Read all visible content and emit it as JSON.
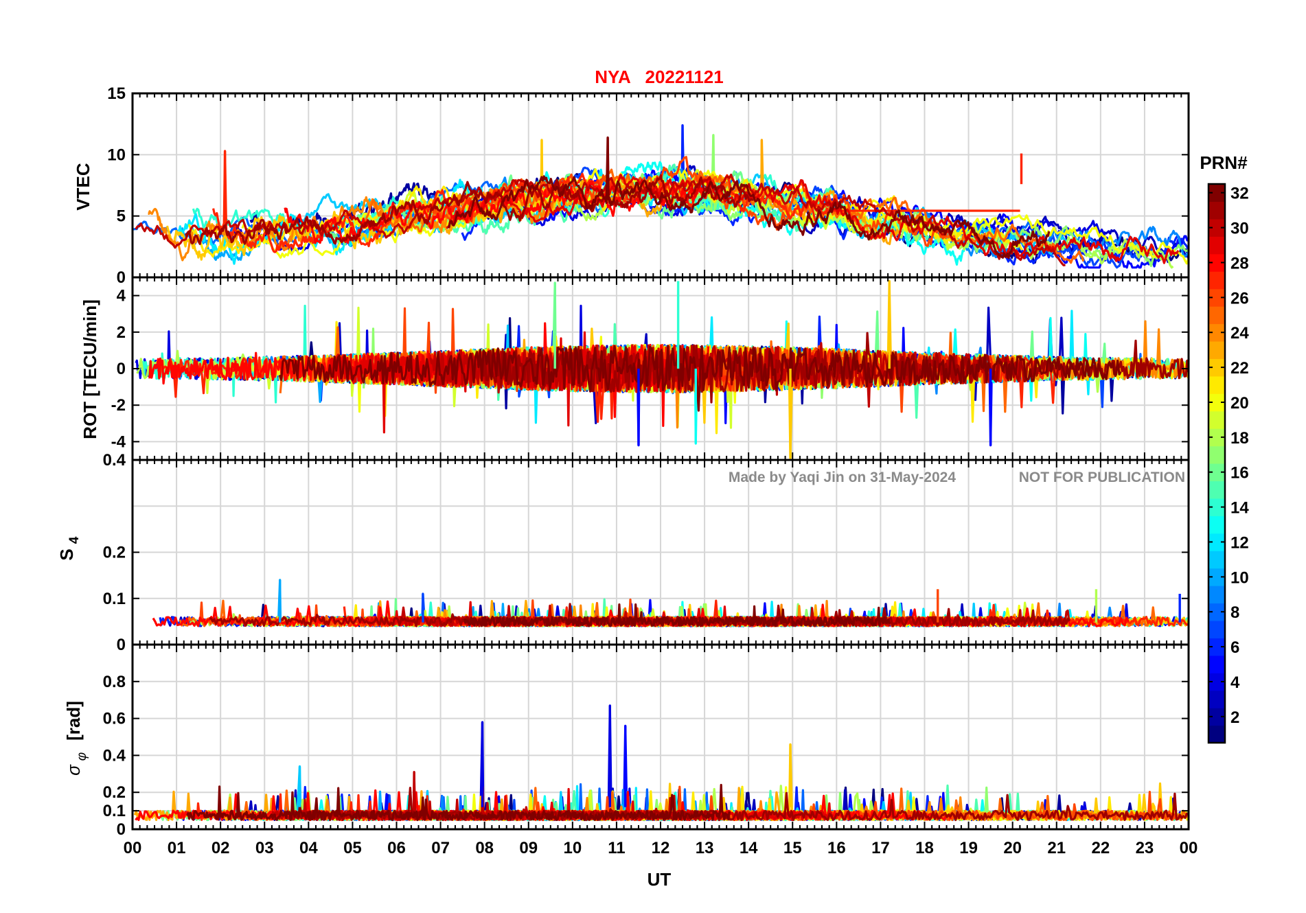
{
  "figure": {
    "title": "NYA   20221121",
    "watermark_author": "Made by Yaqi Jin on 31-May-2024",
    "watermark_notice": "NOT FOR PUBLICATION",
    "title_color": "#ff0000",
    "watermark_color": "#8a8a8a"
  },
  "colorbar": {
    "label": "PRN#",
    "min": 1,
    "max": 32,
    "ticks": [
      "2",
      "4",
      "6",
      "8",
      "10",
      "12",
      "14",
      "16",
      "18",
      "20",
      "22",
      "24",
      "26",
      "28",
      "30",
      "32"
    ],
    "colormap": "jet"
  },
  "chart_data": [
    {
      "type": "line",
      "panel": "vtec",
      "ylabel": "VTEC",
      "ylim": [
        0,
        15
      ],
      "yticks": [
        "0",
        "5",
        "10",
        "15"
      ],
      "xlim": [
        0,
        24
      ],
      "grid": true,
      "series_summary": "32 PRN series; baseline 2-6, peaks 8-12.4 (max ~12.4 near 12.5 UT)",
      "notable_points": [
        {
          "prn": 27,
          "x": 2.1,
          "y": 10.3
        },
        {
          "prn": 22,
          "x": 9.3,
          "y": 11.2
        },
        {
          "prn": 32,
          "x": 10.8,
          "y": 11.4
        },
        {
          "prn": 6,
          "x": 12.5,
          "y": 12.4
        },
        {
          "prn": 17,
          "x": 13.2,
          "y": 11.6
        },
        {
          "prn": 23,
          "x": 14.3,
          "y": 11.2
        },
        {
          "prn": 27,
          "x": 20.2,
          "y": 10.1
        }
      ]
    },
    {
      "type": "line",
      "panel": "rot",
      "ylabel": "ROT [TECU/min]",
      "ylim": [
        -5,
        5
      ],
      "yticks": [
        "-4",
        "-2",
        "0",
        "2",
        "4"
      ],
      "xlim": [
        0,
        24
      ],
      "grid": true,
      "series_summary": "32 PRN series fluctuating around 0, typical ±1.5",
      "notable_points": [
        {
          "prn": 16,
          "x": 9.6,
          "y": 4.7
        },
        {
          "prn": 14,
          "x": 12.4,
          "y": 4.8
        },
        {
          "prn": 22,
          "x": 17.2,
          "y": 4.8
        },
        {
          "prn": 5,
          "x": 11.5,
          "y": -4.2
        },
        {
          "prn": 13,
          "x": 12.8,
          "y": -4.1
        },
        {
          "prn": 22,
          "x": 14.95,
          "y": -4.9
        },
        {
          "prn": 5,
          "x": 19.5,
          "y": -4.2
        }
      ]
    },
    {
      "type": "line",
      "panel": "s4",
      "ylabel": "S",
      "ylabel_sub": "4",
      "ylim": [
        0,
        0.4
      ],
      "yticks": [
        "0",
        "0.1",
        "0.2",
        "0.4"
      ],
      "xlim": [
        0,
        24
      ],
      "grid": true,
      "series_summary": "32 PRN series, baseline ~0.04-0.06",
      "notable_points": [
        {
          "prn": 10,
          "x": 3.35,
          "y": 0.14
        },
        {
          "prn": 7,
          "x": 6.6,
          "y": 0.11
        },
        {
          "prn": 26,
          "x": 18.3,
          "y": 0.12
        },
        {
          "prn": 18,
          "x": 21.9,
          "y": 0.12
        },
        {
          "prn": 6,
          "x": 23.8,
          "y": 0.11
        }
      ]
    },
    {
      "type": "line",
      "panel": "sigma_phi",
      "ylabel": "σ",
      "ylabel_sub": "φ",
      "ylabel_unit": "[rad]",
      "ylim": [
        0,
        1
      ],
      "yticks": [
        "0",
        "0.1",
        "0.2",
        "0.4",
        "0.6",
        "0.8"
      ],
      "xlim": [
        0,
        24
      ],
      "grid": true,
      "series_summary": "32 PRN series, baseline ~0.04-0.1",
      "notable_points": [
        {
          "prn": 4,
          "x": 7.95,
          "y": 0.58
        },
        {
          "prn": 4,
          "x": 10.85,
          "y": 0.67
        },
        {
          "prn": 5,
          "x": 11.2,
          "y": 0.56
        },
        {
          "prn": 22,
          "x": 14.95,
          "y": 0.46
        },
        {
          "prn": 11,
          "x": 3.8,
          "y": 0.34
        },
        {
          "prn": 30,
          "x": 6.4,
          "y": 0.31
        }
      ]
    }
  ],
  "x_axis": {
    "label": "UT",
    "ticks": [
      "00",
      "01",
      "02",
      "03",
      "04",
      "05",
      "06",
      "07",
      "08",
      "09",
      "10",
      "11",
      "12",
      "13",
      "14",
      "15",
      "16",
      "17",
      "18",
      "19",
      "20",
      "21",
      "22",
      "23",
      "00"
    ]
  }
}
